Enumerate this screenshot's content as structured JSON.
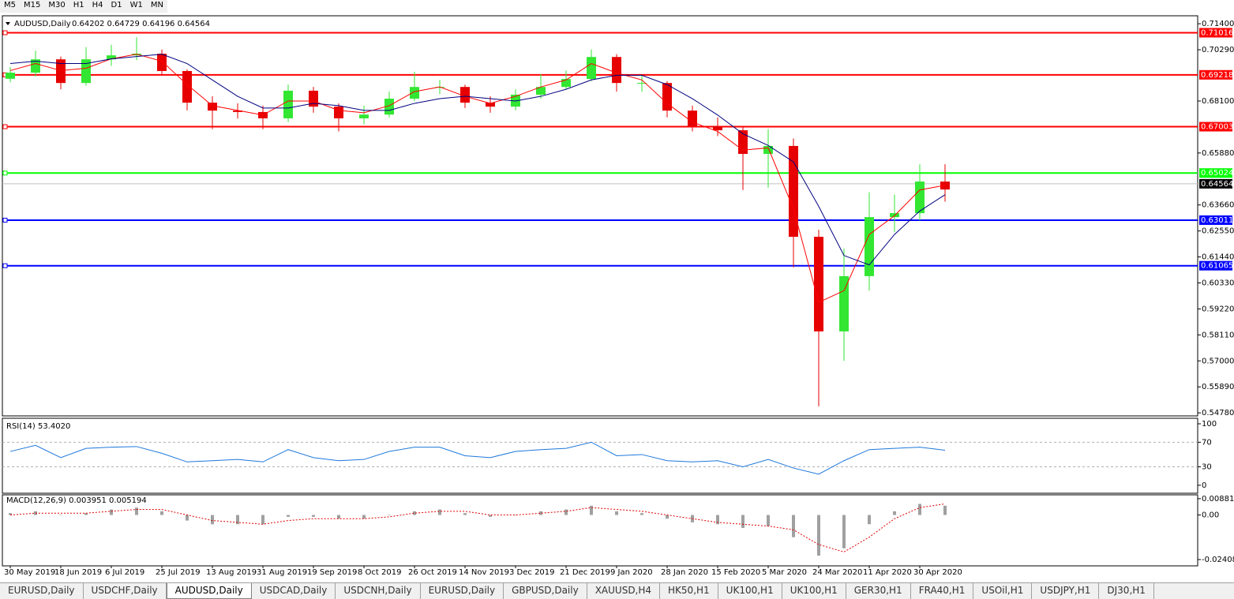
{
  "toolbar": [
    "M5",
    "M15",
    "M30",
    "H1",
    "H4",
    "D1",
    "W1",
    "MN"
  ],
  "tabs": [
    "EURUSD,Daily",
    "USDCHF,Daily",
    "AUDUSD,Daily",
    "USDCAD,Daily",
    "USDCNH,Daily",
    "EURUSD,Daily",
    "GBPUSD,Daily",
    "XAUUSD,H4",
    "HK50,H1",
    "UK100,H1",
    "UK100,H1",
    "GER30,H1",
    "FRA40,H1",
    "USOil,H1",
    "USDJPY,H1",
    "DJ30,H1"
  ],
  "active_tab": 2,
  "chart_data": [
    {
      "type": "candlestick",
      "title": "AUDUSD,Daily",
      "quote": "0.64202 0.64729 0.64196 0.64564",
      "categories": [
        "30 May 2019",
        null,
        "18 Jun 2019",
        null,
        "6 Jul 2019",
        null,
        "25 Jul 2019",
        null,
        "13 Aug 2019",
        null,
        "31 Aug 2019",
        null,
        "19 Sep 2019",
        null,
        "8 Oct 2019",
        null,
        "26 Oct 2019",
        null,
        "14 Nov 2019",
        null,
        "3 Dec 2019",
        null,
        "21 Dec 2019",
        null,
        "9 Jan 2020",
        null,
        "28 Jan 2020",
        null,
        "15 Feb 2020",
        null,
        "5 Mar 2020",
        null,
        "24 Mar 2020",
        null,
        "11 Apr 2020",
        null,
        "30 Apr 2020",
        null
      ],
      "open": [
        0.6905,
        0.6931,
        0.6988,
        0.6887,
        0.6988,
        0.7005,
        0.7012,
        0.6938,
        0.6803,
        0.6769,
        0.6763,
        0.6736,
        0.6854,
        0.6786,
        0.6736,
        0.6752,
        0.682,
        0.687,
        0.687,
        0.6803,
        0.6786,
        0.6837,
        0.687,
        0.6904,
        0.6998,
        0.6887,
        0.6887,
        0.6769,
        0.6702,
        0.6685,
        0.6584,
        0.6618,
        0.623,
        0.5826,
        0.6062,
        0.6314,
        0.6331,
        0.6466
      ],
      "high": [
        0.6955,
        0.7025,
        0.7,
        0.704,
        0.705,
        0.7082,
        0.703,
        0.6945,
        0.683,
        0.68,
        0.679,
        0.688,
        0.687,
        0.68,
        0.679,
        0.685,
        0.6935,
        0.69,
        0.688,
        0.683,
        0.686,
        0.6925,
        0.694,
        0.703,
        0.701,
        0.692,
        0.6895,
        0.679,
        0.674,
        0.67,
        0.669,
        0.665,
        0.626,
        0.618,
        0.642,
        0.641,
        0.654,
        0.654
      ],
      "low": [
        0.689,
        0.6915,
        0.686,
        0.6875,
        0.696,
        0.6985,
        0.692,
        0.677,
        0.669,
        0.6735,
        0.669,
        0.672,
        0.676,
        0.668,
        0.671,
        0.674,
        0.681,
        0.684,
        0.678,
        0.676,
        0.677,
        0.682,
        0.686,
        0.6895,
        0.685,
        0.685,
        0.674,
        0.668,
        0.666,
        0.643,
        0.644,
        0.61,
        0.5506,
        0.57,
        0.6,
        0.625,
        0.63,
        0.638
      ],
      "close": [
        0.6931,
        0.6988,
        0.6887,
        0.6988,
        0.7005,
        0.7012,
        0.6938,
        0.6803,
        0.6769,
        0.6763,
        0.6736,
        0.6854,
        0.6786,
        0.6736,
        0.6752,
        0.682,
        0.687,
        0.687,
        0.6803,
        0.6786,
        0.6837,
        0.687,
        0.6904,
        0.6998,
        0.6887,
        0.6887,
        0.6769,
        0.6702,
        0.6685,
        0.6584,
        0.6618,
        0.623,
        0.5826,
        0.6062,
        0.6314,
        0.6331,
        0.6466,
        0.6432
      ],
      "up_color": "#32e632",
      "down_color": "#e60000",
      "series": [
        {
          "color": "#ff0000",
          "values": [
            0.694,
            0.697,
            0.694,
            0.695,
            0.699,
            0.701,
            0.698,
            0.688,
            0.679,
            0.677,
            0.675,
            0.681,
            0.681,
            0.677,
            0.676,
            0.679,
            0.685,
            0.687,
            0.683,
            0.68,
            0.683,
            0.687,
            0.69,
            0.697,
            0.693,
            0.69,
            0.68,
            0.672,
            0.668,
            0.66,
            0.661,
            0.635,
            0.595,
            0.6,
            0.624,
            0.632,
            0.643,
            0.645
          ]
        },
        {
          "color": "#000080",
          "values": [
            0.697,
            0.698,
            0.697,
            0.697,
            0.699,
            0.7,
            0.701,
            0.697,
            0.69,
            0.683,
            0.678,
            0.678,
            0.68,
            0.679,
            0.677,
            0.677,
            0.68,
            0.682,
            0.683,
            0.682,
            0.681,
            0.683,
            0.686,
            0.69,
            0.692,
            0.692,
            0.688,
            0.682,
            0.675,
            0.667,
            0.662,
            0.655,
            0.636,
            0.615,
            0.611,
            0.624,
            0.634,
            0.641
          ]
        }
      ],
      "ylim": [
        0.5465,
        0.7174
      ],
      "yticks": [
        {
          "value": 0.714,
          "label": "0.71400"
        },
        {
          "value": 0.7029,
          "label": "0.70290"
        },
        {
          "value": 0.681,
          "label": "0.68100"
        },
        {
          "value": 0.6588,
          "label": "0.65880"
        },
        {
          "value": 0.6366,
          "label": "0.63660"
        },
        {
          "value": 0.6255,
          "label": "0.62550"
        },
        {
          "value": 0.6144,
          "label": "0.61440"
        },
        {
          "value": 0.6033,
          "label": "0.60330"
        },
        {
          "value": 0.5922,
          "label": "0.59220"
        },
        {
          "value": 0.5811,
          "label": "0.58110"
        },
        {
          "value": 0.57,
          "label": "0.57000"
        },
        {
          "value": 0.5589,
          "label": "0.55890"
        },
        {
          "value": 0.5478,
          "label": "0.54780"
        }
      ],
      "levels": [
        {
          "value": 0.71016,
          "color": "#ff0000"
        },
        {
          "value": 0.69218,
          "color": "#ff0000"
        },
        {
          "value": 0.67003,
          "color": "#ff0000"
        },
        {
          "value": 0.65024,
          "color": "#00ff00"
        },
        {
          "value": 0.63011,
          "color": "#0000ff"
        },
        {
          "value": 0.61065,
          "color": "#0000ff"
        }
      ],
      "last_price": 0.64564
    },
    {
      "type": "line",
      "title": "RSI(14) 53.4020",
      "color": "#1e78dc",
      "values": [
        55,
        65,
        45,
        60,
        62,
        63,
        52,
        38,
        40,
        42,
        38,
        58,
        45,
        40,
        42,
        55,
        62,
        62,
        48,
        45,
        55,
        58,
        60,
        70,
        48,
        50,
        40,
        38,
        40,
        30,
        42,
        28,
        18,
        40,
        58,
        60,
        62,
        57
      ],
      "ylim": [
        -13,
        109
      ],
      "yticks": [
        0,
        30,
        70,
        100
      ],
      "levels": [
        30,
        70
      ]
    },
    {
      "type": "macd",
      "title": "MACD(12,26,9) 0.003951 0.005194",
      "histogram_color": "#a0a0a0",
      "signal_color": "#e00000",
      "histogram": [
        0.001,
        0.002,
        0.0,
        0.001,
        0.003,
        0.004,
        0.002,
        -0.003,
        -0.005,
        -0.005,
        -0.005,
        -0.001,
        -0.001,
        -0.002,
        -0.002,
        0.0,
        0.002,
        0.003,
        0.001,
        -0.001,
        0.0,
        0.002,
        0.003,
        0.005,
        0.002,
        0.001,
        -0.002,
        -0.004,
        -0.005,
        -0.007,
        -0.006,
        -0.012,
        -0.022,
        -0.018,
        -0.005,
        0.002,
        0.006,
        0.005
      ],
      "signal": [
        0.0,
        0.001,
        0.001,
        0.001,
        0.002,
        0.003,
        0.003,
        0.0,
        -0.003,
        -0.004,
        -0.005,
        -0.003,
        -0.002,
        -0.002,
        -0.002,
        -0.001,
        0.001,
        0.002,
        0.002,
        0.0,
        0.0,
        0.001,
        0.002,
        0.004,
        0.003,
        0.002,
        0.0,
        -0.002,
        -0.004,
        -0.005,
        -0.006,
        -0.008,
        -0.016,
        -0.02,
        -0.012,
        -0.002,
        0.004,
        0.006
      ],
      "ylim": [
        -0.0275,
        0.0109
      ],
      "yticks": [
        0.008815,
        {
          "value": 0,
          "label": "0.00"
        },
        -0.024082
      ]
    }
  ]
}
